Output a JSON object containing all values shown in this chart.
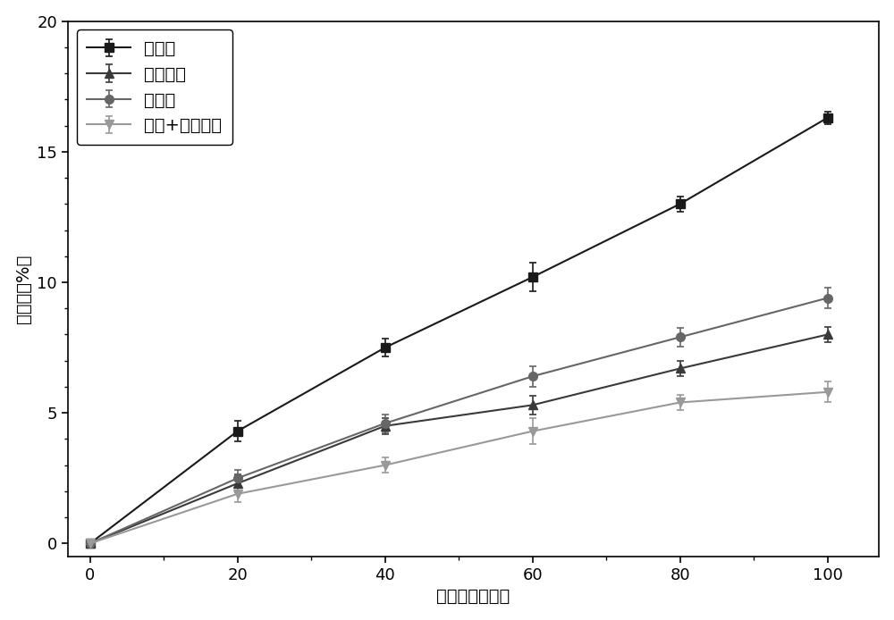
{
  "x": [
    0,
    20,
    40,
    60,
    80,
    100
  ],
  "series": [
    {
      "label": "对照组",
      "y": [
        0,
        4.3,
        7.5,
        10.2,
        13.0,
        16.3
      ],
      "yerr": [
        0,
        0.4,
        0.35,
        0.55,
        0.3,
        0.25
      ],
      "color": "#1a1a1a",
      "marker": "s",
      "marker_size": 7,
      "linewidth": 1.5
    },
    {
      "label": "电解水组",
      "y": [
        0,
        2.3,
        4.5,
        5.3,
        6.7,
        8.0
      ],
      "yerr": [
        0,
        0.35,
        0.3,
        0.35,
        0.3,
        0.3
      ],
      "color": "#3a3a3a",
      "marker": "^",
      "marker_size": 7,
      "linewidth": 1.5
    },
    {
      "label": "热激组",
      "y": [
        0,
        2.5,
        4.6,
        6.4,
        7.9,
        9.4
      ],
      "yerr": [
        0,
        0.3,
        0.35,
        0.4,
        0.35,
        0.4
      ],
      "color": "#666666",
      "marker": "o",
      "marker_size": 7,
      "linewidth": 1.5
    },
    {
      "label": "热激+电解水组",
      "y": [
        0,
        1.9,
        3.0,
        4.3,
        5.4,
        5.8
      ],
      "yerr": [
        0,
        0.3,
        0.3,
        0.5,
        0.3,
        0.4
      ],
      "color": "#999999",
      "marker": "v",
      "marker_size": 7,
      "linewidth": 1.5
    }
  ],
  "xlabel": "贮藏时间（天）",
  "ylabel": "失重率（%）",
  "xlim": [
    -3,
    107
  ],
  "ylim": [
    -0.5,
    20
  ],
  "xticks": [
    0,
    20,
    40,
    60,
    80,
    100
  ],
  "yticks": [
    0,
    5,
    10,
    15,
    20
  ],
  "legend_loc": "upper left",
  "legend_fontsize": 14,
  "axis_fontsize": 14,
  "tick_fontsize": 13,
  "figure_facecolor": "#ffffff",
  "axes_facecolor": "#ffffff"
}
